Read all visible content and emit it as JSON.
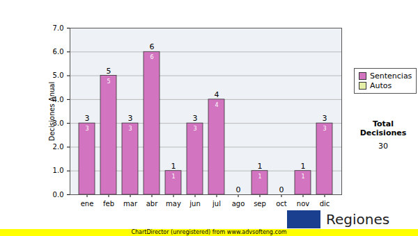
{
  "chart_data": {
    "type": "bar",
    "categories": [
      "ene",
      "feb",
      "mar",
      "abr",
      "may",
      "jun",
      "jul",
      "ago",
      "sep",
      "oct",
      "nov",
      "dic"
    ],
    "series": [
      {
        "name": "Sentencias",
        "color": "#d274c0",
        "values": [
          3,
          5,
          3,
          6,
          1,
          3,
          4,
          0,
          1,
          0,
          1,
          3
        ]
      },
      {
        "name": "Autos",
        "color": "#e6efa8",
        "values": [
          0,
          0,
          0,
          0,
          0,
          0,
          0,
          0,
          0,
          0,
          0,
          0
        ]
      }
    ],
    "y_label": "Decisiones Anual",
    "ylim": [
      0,
      7
    ],
    "yticks": [
      0,
      1,
      2,
      3,
      4,
      5,
      6,
      7
    ],
    "grid": true,
    "stacked": true,
    "data_labels": true,
    "legend": "right",
    "total": {
      "label": "Total Decisiones",
      "value": 30
    },
    "logo_text": "Regiones",
    "footer": "ChartDirector (unregistered) from www.advsofteng.com"
  }
}
